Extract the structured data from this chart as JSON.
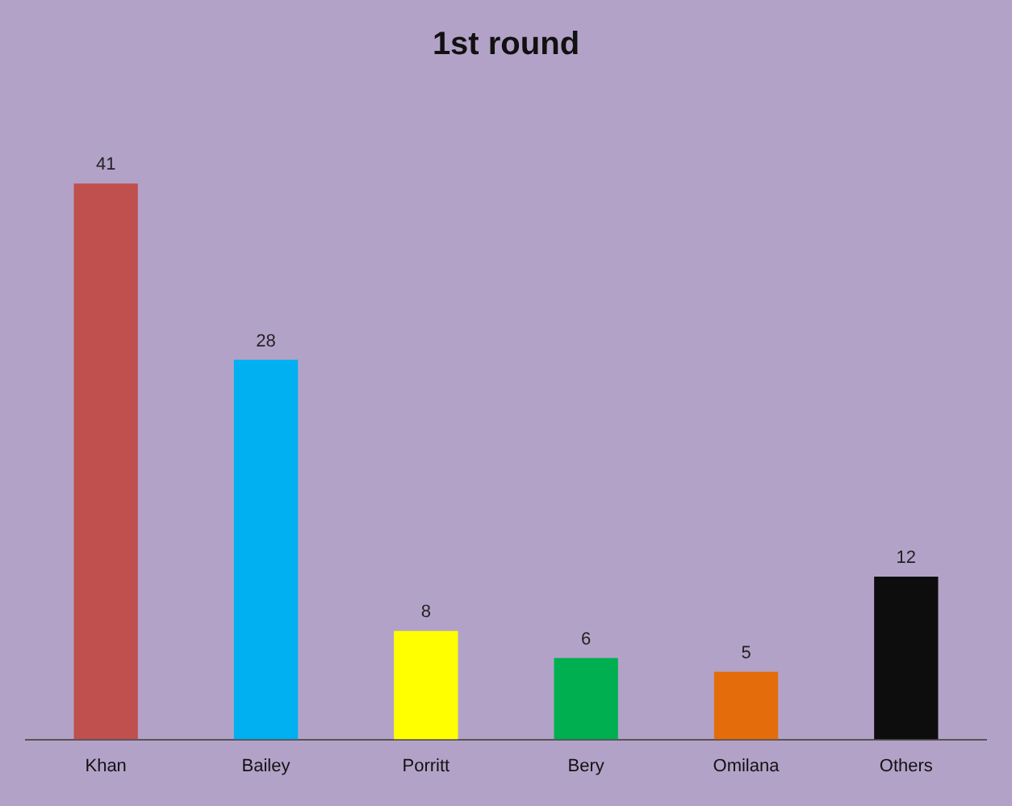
{
  "chart_data": {
    "type": "bar",
    "title": "1st round",
    "categories": [
      "Khan",
      "Bailey",
      "Porritt",
      "Bery",
      "Omilana",
      "Others"
    ],
    "values": [
      41,
      28,
      8,
      6,
      5,
      12
    ],
    "colors": [
      "#c0504d",
      "#00b0f0",
      "#ffff00",
      "#00b050",
      "#e46c0a",
      "#0d0d0d"
    ],
    "data_labels": true,
    "grid": false,
    "legend": false
  }
}
